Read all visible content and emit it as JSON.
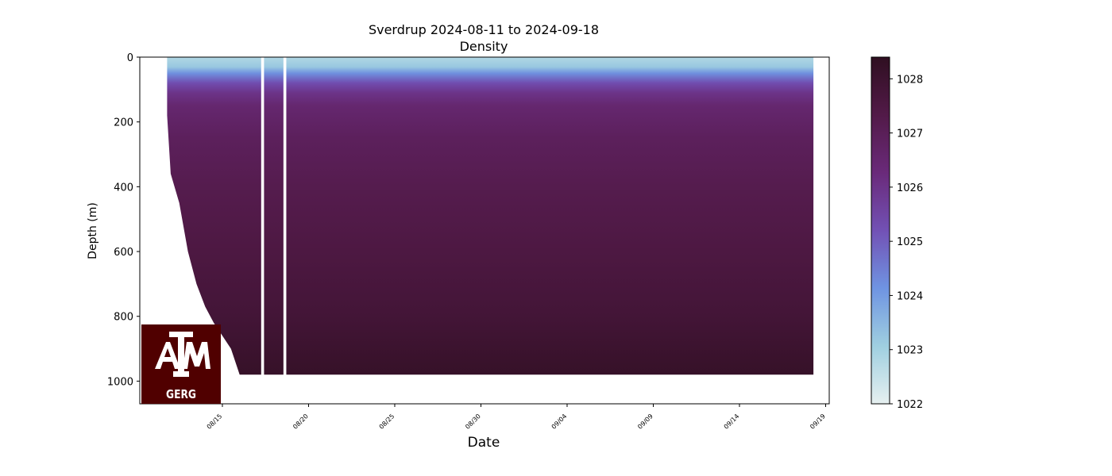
{
  "chart_data": {
    "type": "heatmap",
    "title": "Sverdrup 2024-08-11 to 2024-09-18",
    "subtitle": "Density",
    "xlabel": "Date",
    "ylabel": "Depth (m)",
    "x_range": [
      "2024-08-10T05:00",
      "2024-09-19T05:00"
    ],
    "ylim": [
      1070,
      0
    ],
    "y_inverted": true,
    "x_ticks": [
      "08/15",
      "08/20",
      "08/25",
      "08/30",
      "09/04",
      "09/09",
      "09/14",
      "09/19"
    ],
    "x_tick_dates": [
      "2024-08-15",
      "2024-08-20",
      "2024-08-25",
      "2024-08-30",
      "2024-09-04",
      "2024-09-09",
      "2024-09-14",
      "2024-09-19"
    ],
    "y_ticks": [
      0,
      200,
      400,
      600,
      800,
      1000
    ],
    "data_start": "2024-08-11T19:00",
    "data_end": "2024-09-18T07:00",
    "max_depth": 980,
    "profile_max_depth": [
      {
        "date": "2024-08-11T19:00",
        "depth": 180
      },
      {
        "date": "2024-08-12T00:00",
        "depth": 360
      },
      {
        "date": "2024-08-12T12:00",
        "depth": 450
      },
      {
        "date": "2024-08-13T00:00",
        "depth": 600
      },
      {
        "date": "2024-08-13T12:00",
        "depth": 700
      },
      {
        "date": "2024-08-14T00:00",
        "depth": 770
      },
      {
        "date": "2024-08-14T12:00",
        "depth": 820
      },
      {
        "date": "2024-08-15T00:00",
        "depth": 860
      },
      {
        "date": "2024-08-15T12:00",
        "depth": 900
      },
      {
        "date": "2024-08-16T00:00",
        "depth": 980
      }
    ],
    "data_gaps": [
      {
        "start": "2024-08-17T06:00",
        "end": "2024-08-17T10:00"
      },
      {
        "start": "2024-08-18T13:00",
        "end": "2024-08-18T17:00"
      }
    ],
    "density_profile": [
      {
        "depth": 0,
        "density": 1022.8
      },
      {
        "depth": 30,
        "density": 1023.2
      },
      {
        "depth": 50,
        "density": 1024.2
      },
      {
        "depth": 80,
        "density": 1025.3
      },
      {
        "depth": 110,
        "density": 1026.0
      },
      {
        "depth": 150,
        "density": 1026.5
      },
      {
        "depth": 250,
        "density": 1026.9
      },
      {
        "depth": 400,
        "density": 1027.2
      },
      {
        "depth": 600,
        "density": 1027.5
      },
      {
        "depth": 800,
        "density": 1027.8
      },
      {
        "depth": 980,
        "density": 1028.2
      }
    ],
    "colorbar": {
      "min": 1022,
      "max": 1028.4,
      "ticks": [
        1022,
        1023,
        1024,
        1025,
        1026,
        1027,
        1028
      ],
      "colors": [
        "#e6f0f0",
        "#9fcfe0",
        "#6f94e2",
        "#7251b5",
        "#6a2a7a",
        "#521a48",
        "#2f0f21"
      ]
    },
    "grid": false
  },
  "logo": {
    "text": "ATM",
    "subtext": "GERG",
    "background": "#500000",
    "foreground": "#ffffff"
  }
}
